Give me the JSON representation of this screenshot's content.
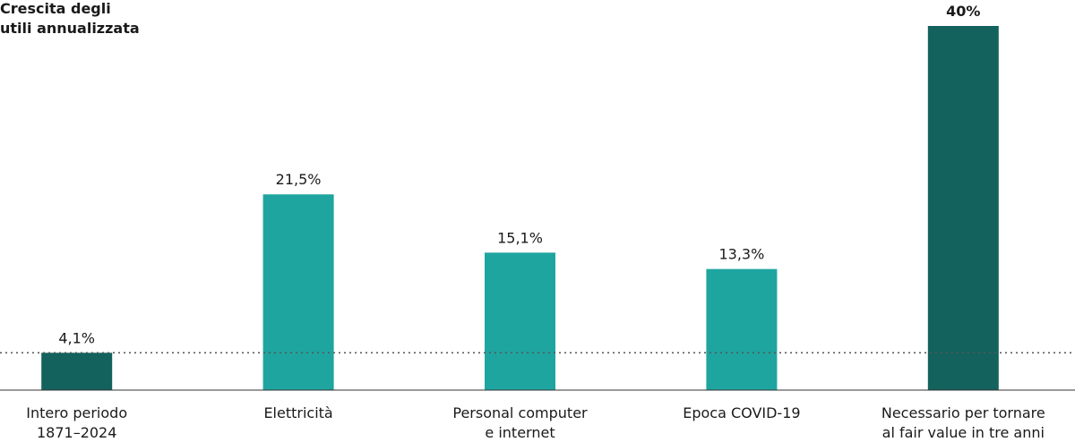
{
  "chart_data": {
    "type": "bar",
    "y_axis_title": "Crescita degli\nutili annualizzata",
    "categories": [
      "Intero periodo\n1871–2024",
      "Elettricità",
      "Personal computer\ne internet",
      "Epoca COVID-19",
      "Necessario per tornare\nal fair value in tre anni"
    ],
    "values": [
      4.1,
      21.5,
      15.1,
      13.3,
      40
    ],
    "value_labels": [
      "4,1%",
      "21,5%",
      "15,1%",
      "13,3%",
      "40%"
    ],
    "colors": [
      "#13625e",
      "#1fa5a0",
      "#1fa5a0",
      "#1fa5a0",
      "#13625e"
    ],
    "bold_value_labels": [
      false,
      false,
      false,
      false,
      true
    ],
    "ylim": [
      0,
      40
    ],
    "reference_line": "dotted"
  }
}
